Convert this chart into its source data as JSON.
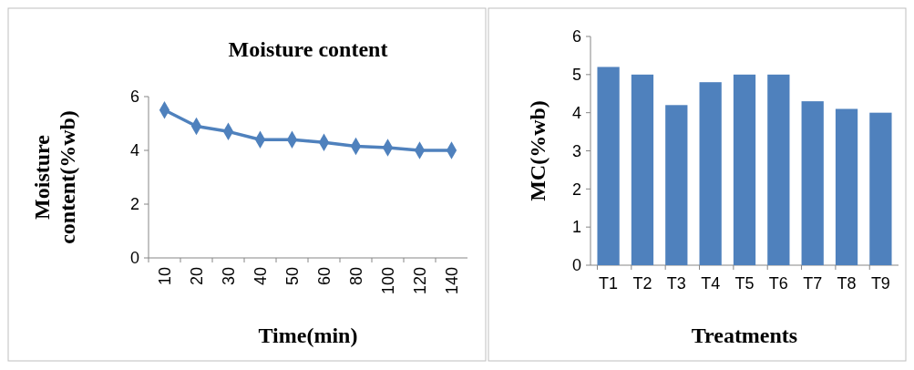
{
  "chart_data": [
    {
      "type": "line",
      "title": "Moisture content",
      "xlabel": "Time(min)",
      "ylabel": "Moisture content(%wb)",
      "categories": [
        "10",
        "20",
        "30",
        "40",
        "50",
        "60",
        "80",
        "100",
        "120",
        "140"
      ],
      "series": [
        {
          "color": "#4f81bd",
          "values": [
            5.5,
            4.9,
            4.7,
            4.4,
            4.4,
            4.3,
            4.15,
            4.1,
            4.0,
            4.0
          ]
        }
      ],
      "ylim": [
        0,
        6
      ],
      "yticks": [
        0,
        2,
        4,
        6
      ],
      "marker": "diamond",
      "grid": false
    },
    {
      "type": "bar",
      "xlabel": "Treatments",
      "ylabel": "MC(%wb)",
      "categories": [
        "T1",
        "T2",
        "T3",
        "T4",
        "T5",
        "T6",
        "T7",
        "T8",
        "T9"
      ],
      "series": [
        {
          "color": "#4f81bd",
          "values": [
            5.2,
            5.0,
            4.2,
            4.8,
            5.0,
            5.0,
            4.3,
            4.1,
            4.0
          ]
        }
      ],
      "ylim": [
        0,
        6
      ],
      "yticks": [
        0,
        1,
        2,
        3,
        4,
        5,
        6
      ],
      "grid": false
    }
  ]
}
